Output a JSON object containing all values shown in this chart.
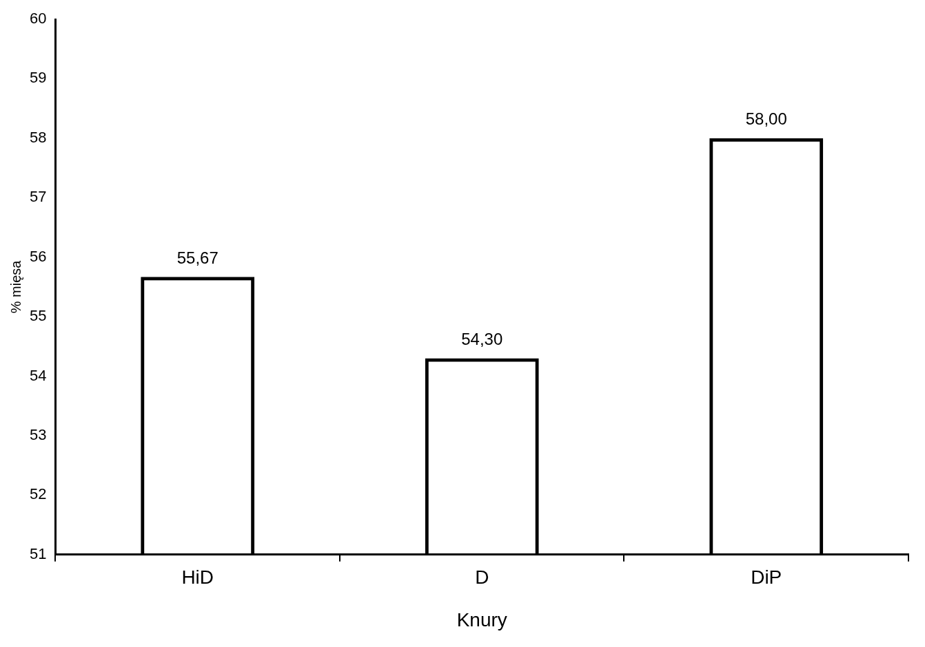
{
  "chart_data": {
    "type": "bar",
    "xlabel": "Knury",
    "ylabel": "% mięsa",
    "categories": [
      "HiD",
      "D",
      "DiP"
    ],
    "values": [
      55.67,
      54.3,
      58.0
    ],
    "value_labels": [
      "55,67",
      "54,30",
      "58,00"
    ],
    "color": "#000000",
    "ylim": [
      51,
      60
    ],
    "yticks": [
      51,
      52,
      53,
      54,
      55,
      56,
      57,
      58,
      59,
      60
    ],
    "grid": false,
    "legend": false
  }
}
